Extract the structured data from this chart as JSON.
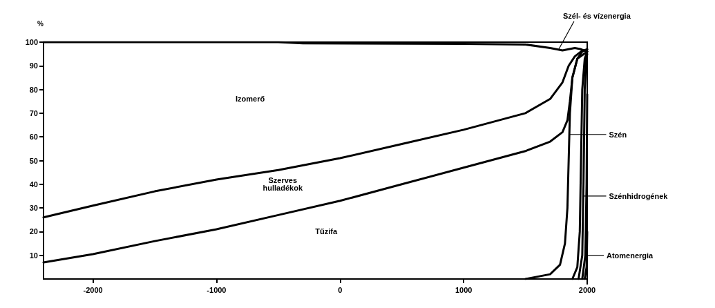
{
  "chart_data": {
    "type": "line",
    "ylabel": "%",
    "xlim": [
      -2400,
      2000
    ],
    "ylim": [
      0,
      100
    ],
    "xticks": [
      -2000,
      -1000,
      0,
      1000,
      2000
    ],
    "yticks": [
      10,
      20,
      30,
      40,
      50,
      60,
      70,
      80,
      90,
      100
    ],
    "grid": false,
    "marker": "none",
    "line_style": "solid",
    "series": [
      {
        "color": "#000000",
        "x": [
          -2400,
          -2000,
          -1500,
          -1000,
          -500,
          0,
          500,
          1000,
          1500,
          1700,
          1800,
          1840,
          1860,
          1880,
          1920,
          1960,
          2000
        ],
        "values": [
          7,
          10.5,
          16,
          21,
          27,
          33,
          40,
          47,
          54,
          58,
          62,
          67,
          75,
          85,
          93,
          96,
          97
        ]
      },
      {
        "color": "#000000",
        "x": [
          -2400,
          -2000,
          -1500,
          -1000,
          -500,
          0,
          500,
          1000,
          1500,
          1700,
          1800,
          1850,
          1900,
          1950,
          2000
        ],
        "values": [
          26,
          31,
          37,
          42,
          46,
          51,
          57,
          63,
          70,
          76,
          83,
          90,
          94,
          96,
          97
        ]
      },
      {
        "color": "#000000",
        "x": [
          -2400,
          -500,
          -300,
          1000,
          1500,
          1700,
          1800,
          1850,
          1900,
          1950,
          2000
        ],
        "values": [
          100,
          100,
          99.5,
          99.3,
          99,
          97.5,
          96.5,
          97,
          97.5,
          97,
          96
        ]
      },
      {
        "color": "#000000",
        "x": [
          1500,
          1700,
          1780,
          1820,
          1840,
          1850,
          1860,
          1880,
          1920,
          2000
        ],
        "values": [
          0,
          2,
          6,
          15,
          30,
          50,
          70,
          85,
          93,
          96
        ]
      },
      {
        "color": "#000000",
        "x": [
          1880,
          1920,
          1940,
          1950,
          1960,
          1980,
          2000
        ],
        "values": [
          0,
          5,
          20,
          50,
          80,
          93,
          96
        ]
      },
      {
        "color": "#000000",
        "x": [
          1930,
          1960,
          1970,
          1980,
          1990,
          2000
        ],
        "values": [
          0,
          10,
          40,
          80,
          92,
          95
        ]
      },
      {
        "color": "#000000",
        "x": [
          1960,
          1985,
          1995,
          2000
        ],
        "values": [
          0,
          10,
          40,
          78
        ]
      },
      {
        "color": "#000000",
        "x": [
          1980,
          1995,
          2000
        ],
        "values": [
          0,
          5,
          20
        ]
      }
    ],
    "annotations": [
      "Izomerő",
      "Szerves\nhulladékok",
      "Tűzifa",
      {
        "text": "Szél- és vízenergia",
        "x": 1770,
        "y": 97
      },
      "Szén",
      "Szénhidrogének",
      {
        "text": "Atomenergia",
        "x": 1995,
        "y": 10
      }
    ]
  }
}
